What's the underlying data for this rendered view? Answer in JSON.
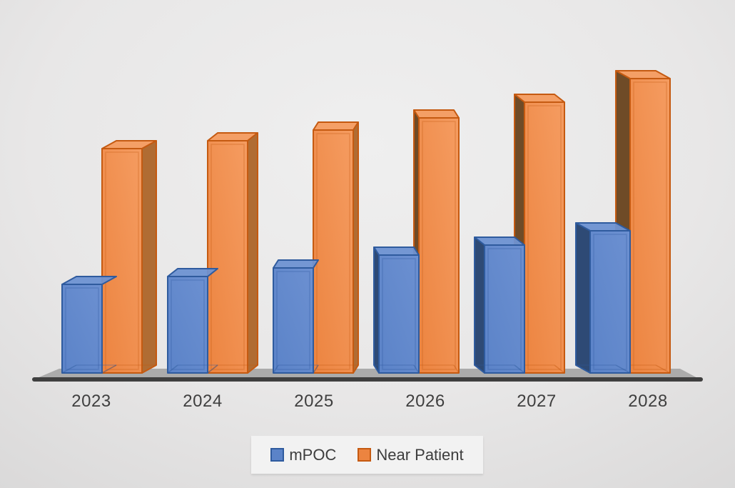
{
  "chart_data": {
    "type": "bar",
    "subtype": "3d-clustered-column",
    "title": "",
    "categories": [
      "2023",
      "2024",
      "2025",
      "2026",
      "2027",
      "2028"
    ],
    "series": [
      {
        "name": "mPOC",
        "values": [
          124,
          135,
          147,
          165,
          179,
          199
        ]
      },
      {
        "name": "Near Patient",
        "values": [
          314,
          325,
          340,
          357,
          379,
          412
        ]
      }
    ],
    "units": "relative height (no value axis shown in chart)",
    "value_axis_visible": false,
    "gridlines": false,
    "legend_position": "bottom",
    "legend_items": [
      "mPOC",
      "Near Patient"
    ]
  },
  "colors": {
    "blue": {
      "front": "#5B83C8",
      "front2": "#6C90D1",
      "top": "#6E92D2",
      "right": "#44689F",
      "left": "#2E4A75",
      "border": "#2F5B9E"
    },
    "orange": {
      "front": "#EC8440",
      "front2": "#F59C61",
      "top": "#F49B5F",
      "right": "#B06C33",
      "left": "#6F4B27",
      "border": "#C55A11"
    },
    "floor": "#ABABAB",
    "floor_edge": "#3F3F3F",
    "label_text": "#3F3F3F",
    "legend_bg": "#F3F3F3"
  }
}
